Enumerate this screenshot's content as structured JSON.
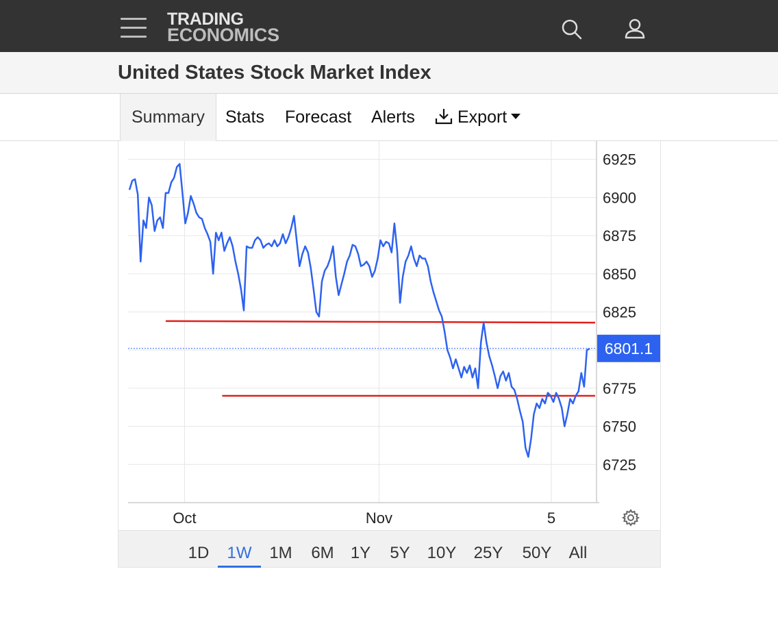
{
  "header": {
    "menu_icon": "hamburger-icon",
    "logo_line1": "TRADING",
    "logo_line2": "ECONOMICS",
    "search_icon": "search-icon",
    "user_icon": "user-icon"
  },
  "page": {
    "title": "United States Stock Market Index"
  },
  "tabs": [
    {
      "label": "Summary",
      "active": true
    },
    {
      "label": "Stats"
    },
    {
      "label": "Forecast"
    },
    {
      "label": "Alerts"
    },
    {
      "label": "Export",
      "icon": "download-icon"
    }
  ],
  "chart_data": {
    "type": "line",
    "series": [
      {
        "color": "#2d62f0",
        "x_start": "2025-09-22",
        "x_end": "2025-12-05",
        "values": [
          6905,
          6911,
          6912,
          6902,
          6858,
          6885,
          6880,
          6900,
          6895,
          6878,
          6885,
          6887,
          6880,
          6903,
          6903,
          6910,
          6913,
          6920,
          6922,
          6903,
          6883,
          6890,
          6901,
          6896,
          6890,
          6887,
          6886,
          6880,
          6876,
          6871,
          6850,
          6877,
          6872,
          6877,
          6865,
          6870,
          6874,
          6868,
          6858,
          6850,
          6840,
          6826,
          6868,
          6867,
          6867,
          6872,
          6874,
          6872,
          6867,
          6869,
          6870,
          6868,
          6872,
          6868,
          6870,
          6876,
          6870,
          6874,
          6880,
          6888,
          6871,
          6855,
          6863,
          6868,
          6864,
          6854,
          6840,
          6825,
          6822,
          6845,
          6852,
          6855,
          6860,
          6868,
          6848,
          6836,
          6843,
          6850,
          6858,
          6862,
          6869,
          6868,
          6863,
          6855,
          6856,
          6858,
          6855,
          6848,
          6852,
          6860,
          6872,
          6868,
          6871,
          6870,
          6864,
          6883,
          6865,
          6831,
          6848,
          6858,
          6862,
          6868,
          6860,
          6855,
          6862,
          6860,
          6860,
          6855,
          6845,
          6838,
          6832,
          6826,
          6822,
          6812,
          6800,
          6795,
          6788,
          6794,
          6788,
          6782,
          6789,
          6785,
          6790,
          6782,
          6788,
          6775,
          6805,
          6818,
          6805,
          6796,
          6790,
          6783,
          6775,
          6783,
          6786,
          6780,
          6785,
          6776,
          6774,
          6768,
          6760,
          6753,
          6736,
          6730,
          6742,
          6758,
          6765,
          6762,
          6768,
          6765,
          6772,
          6770,
          6766,
          6772,
          6768,
          6762,
          6750,
          6758,
          6768,
          6765,
          6770,
          6773,
          6785,
          6776,
          6800,
          6801
        ]
      }
    ],
    "x_ticks": [
      "Oct",
      "Nov",
      "5"
    ],
    "y_ticks": [
      6725,
      6750,
      6775,
      6800,
      6825,
      6850,
      6875,
      6900,
      6925
    ],
    "ylim": [
      6700,
      6937
    ],
    "current_value_label": "6801.1",
    "current_value": 6801.1,
    "current_label_color": "#2d62f0",
    "trendlines": [
      {
        "color": "#e0201b",
        "from": {
          "x": "2025-09-28",
          "y": 6819
        },
        "to": {
          "x": "2025-12-05",
          "y": 6818
        }
      },
      {
        "color": "#e0201b",
        "from": {
          "x": "2025-10-07",
          "y": 6770
        },
        "to": {
          "x": "2025-12-05",
          "y": 6770
        }
      }
    ],
    "grid": true,
    "settings_icon": "gear-icon"
  },
  "range": {
    "buttons": [
      "1D",
      "1W",
      "1M",
      "6M",
      "1Y",
      "5Y",
      "10Y",
      "25Y",
      "50Y",
      "All"
    ],
    "active": "1W",
    "active_color": "#2f6fe0"
  }
}
